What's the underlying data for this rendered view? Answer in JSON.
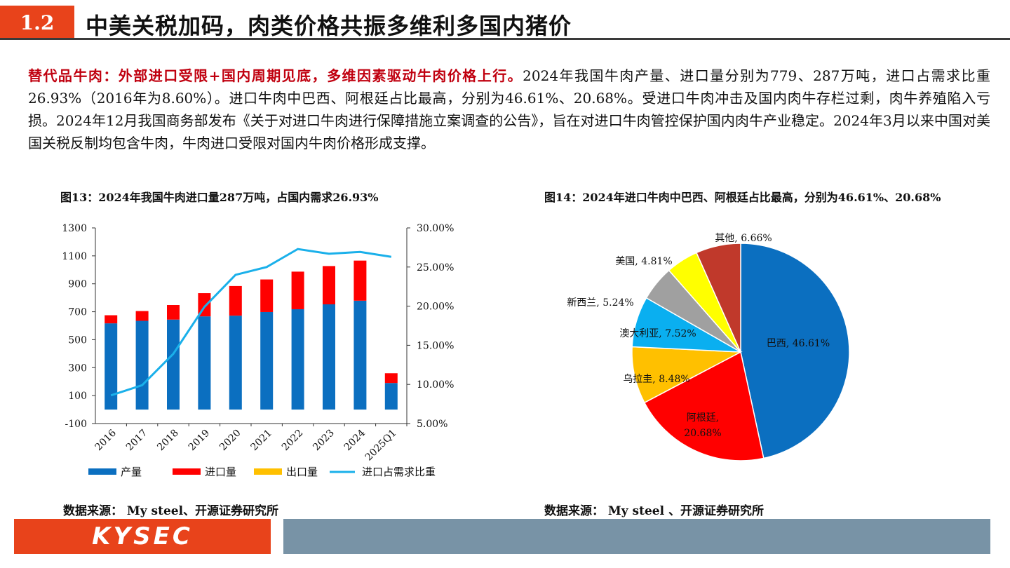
{
  "header": {
    "section_number": "1.2",
    "title": "中美关税加码，肉类价格共振多维利多国内猪价"
  },
  "body": {
    "highlight": "替代品牛肉：外部进口受限+国内周期见底，多维因素驱动牛肉价格上行。",
    "text": "2024年我国牛肉产量、进口量分别为779、287万吨，进口占需求比重26.93%（2016年为8.60%）。进口牛肉中巴西、阿根廷占比最高，分别为46.61%、20.68%。受进口牛肉冲击及国内肉牛存栏过剩，肉牛养殖陷入亏损。2024年12月我国商务部发布《关于对进口牛肉进行保障措施立案调查的公告》，旨在对进口牛肉管控保护国内肉牛产业稳定。2024年3月以来中国对美国关税反制均包含牛肉，牛肉进口受限对国内牛肉价格形成支撑。"
  },
  "figures": {
    "fig13_title": "图13：2024年我国牛肉进口量287万吨，占国内需求26.93%",
    "fig14_title": "图14：2024年进口牛肉中巴西、阿根廷占比最高，分别为46.61%、20.68%",
    "fig13_source": "数据来源：  My steel、开源证券研究所",
    "fig14_source": "数据来源：  My steel 、开源证券研究所"
  },
  "footer": {
    "logo": "KYSEC"
  },
  "colors": {
    "accent": "#e8431b",
    "footer_bar": "#7893a6",
    "highlight_text": "#c0000f"
  },
  "chart_data": [
    {
      "type": "bar",
      "categories": [
        "2016",
        "2017",
        "2018",
        "2019",
        "2020",
        "2021",
        "2022",
        "2023",
        "2024",
        "2025Q1"
      ],
      "series": [
        {
          "name": "产量",
          "color": "#0b6fc0",
          "stacked": true,
          "axis": "left",
          "values": [
            617,
            635,
            644,
            667,
            672,
            698,
            718,
            753,
            779,
            190
          ]
        },
        {
          "name": "进口量",
          "color": "#ff0000",
          "stacked": true,
          "axis": "left",
          "values": [
            58,
            70,
            104,
            166,
            212,
            233,
            269,
            274,
            287,
            70
          ]
        },
        {
          "name": "出口量",
          "color": "#ffc000",
          "stacked": true,
          "axis": "left",
          "values": [
            0,
            0,
            0,
            0,
            0,
            0,
            0,
            0,
            0,
            0
          ]
        },
        {
          "name": "进口占需求比重",
          "type": "line",
          "color": "#1ab0ea",
          "axis": "right",
          "values": [
            8.6,
            9.9,
            13.9,
            19.9,
            24.0,
            25.0,
            27.3,
            26.7,
            26.93,
            26.3
          ]
        }
      ],
      "ylim_left": [
        -100,
        1300
      ],
      "yticks_left": [
        "1300",
        "1100",
        "900",
        "700",
        "500",
        "300",
        "100",
        "-100"
      ],
      "ylim_right": [
        5,
        30
      ],
      "yticks_right": [
        "30.00%",
        "25.00%",
        "20.00%",
        "15.00%",
        "10.00%",
        "5.00%"
      ],
      "legend": [
        "产量",
        "进口量",
        "出口量",
        "进口占需求比重"
      ],
      "legend_position": "bottom",
      "grid": false
    },
    {
      "type": "pie",
      "labels": [
        "巴西, 46.61%",
        "阿根廷, 20.68%",
        "乌拉圭, 8.48%",
        "澳大利亚, 7.52%",
        "新西兰, 5.24%",
        "美国, 4.81%",
        "其他, 6.66%"
      ],
      "values": [
        46.61,
        20.68,
        8.48,
        7.52,
        5.24,
        4.81,
        6.66
      ],
      "colors": [
        "#0b6fc0",
        "#ff0000",
        "#ffc000",
        "#0aaff0",
        "#a0a0a0",
        "#ffff00",
        "#c0392b"
      ],
      "legend_position": "none"
    }
  ]
}
